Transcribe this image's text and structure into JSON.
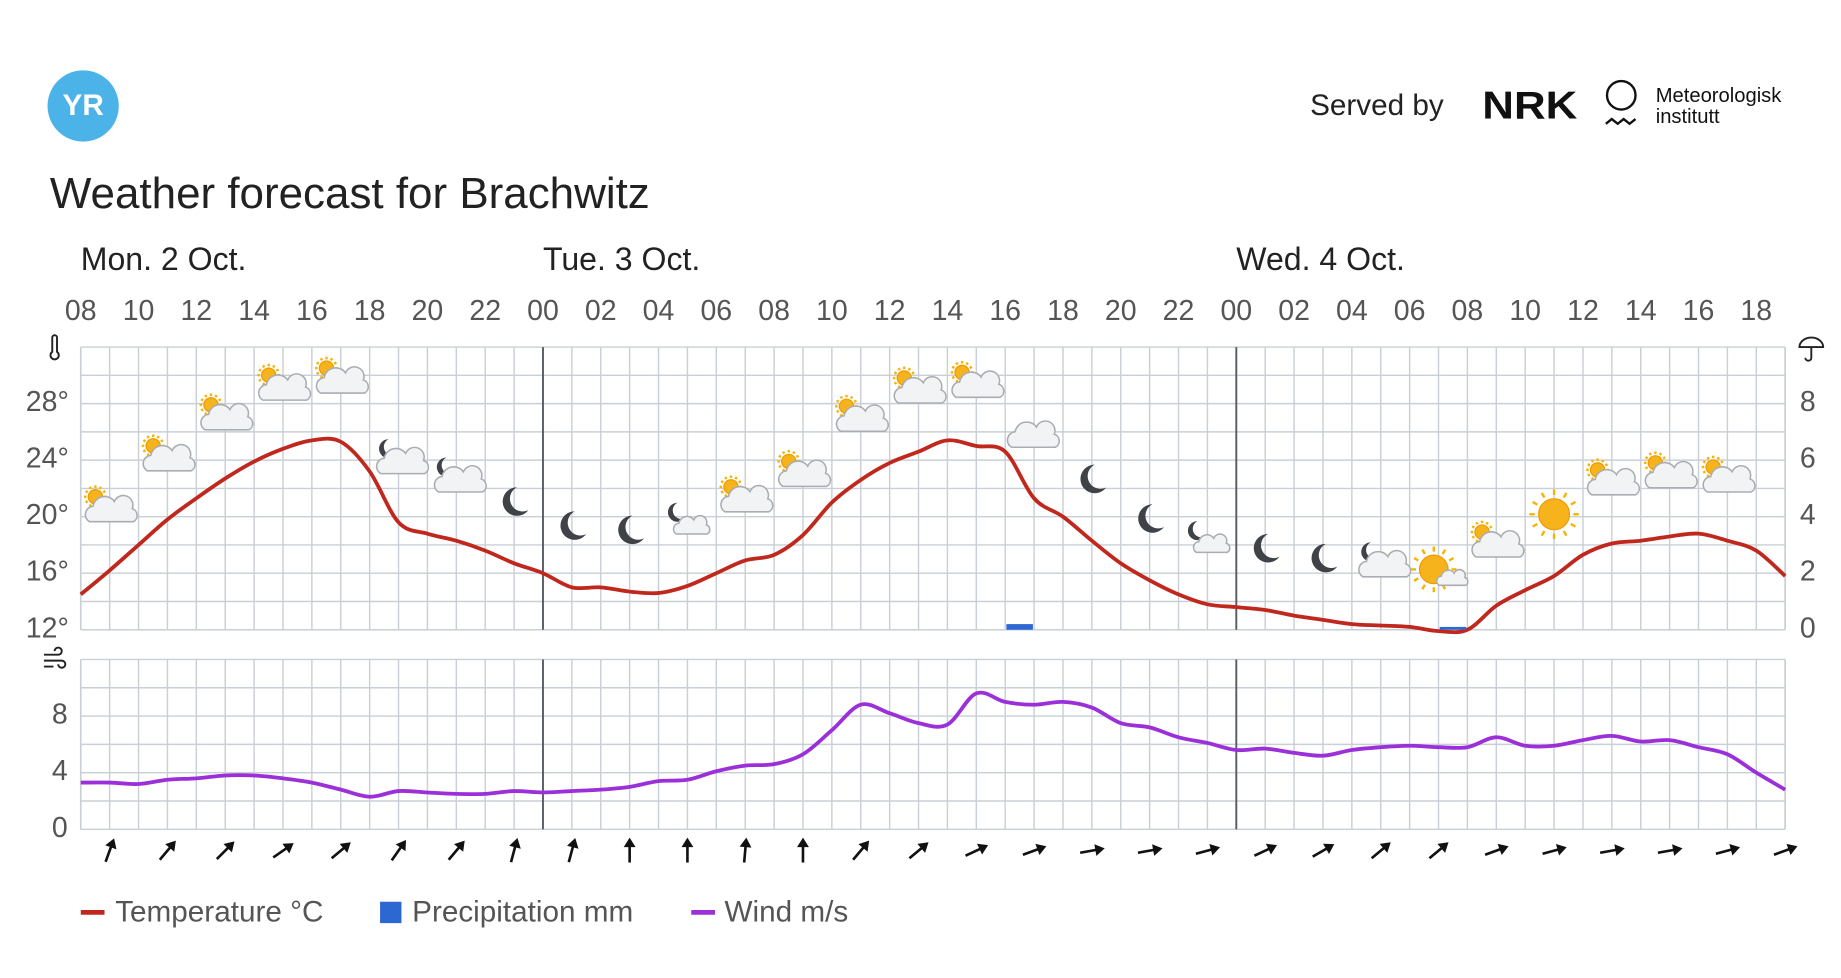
{
  "header": {
    "logo": "YR",
    "served_by": "Served by",
    "nrk": "NRK",
    "met": [
      "Meteorologisk",
      "institutt"
    ]
  },
  "chart_data": [
    {
      "type": "line",
      "title": "Weather forecast for Brachwitz",
      "days": [
        "Mon. 2 Oct.",
        "Tue. 3 Oct.",
        "Wed. 4 Oct."
      ],
      "categories": [
        "08",
        null,
        "10",
        null,
        "12",
        null,
        "14",
        null,
        "16",
        null,
        "18",
        null,
        "20",
        null,
        "22",
        null,
        "00",
        null,
        "02",
        null,
        "04",
        null,
        "06",
        null,
        "08",
        null,
        "10",
        null,
        "12",
        null,
        "14",
        null,
        "16",
        null,
        "18",
        null,
        "20",
        null,
        "22",
        null,
        "00",
        null,
        "02",
        null,
        "04",
        null,
        "06",
        null,
        "08",
        null,
        "10",
        null,
        "12",
        null,
        "14",
        null,
        "16",
        null,
        "18",
        null
      ],
      "ylim": [
        12,
        32
      ],
      "yticks": [
        {
          "value": 12,
          "label": "12°"
        },
        {
          "value": 16,
          "label": "16°"
        },
        {
          "value": 20,
          "label": "20°"
        },
        {
          "value": 24,
          "label": "24°"
        },
        {
          "value": 28,
          "label": "28°"
        }
      ],
      "ygrid": [
        12,
        14,
        16,
        18,
        20,
        22,
        24,
        26,
        28,
        30,
        32
      ],
      "y2lim": [
        0,
        10
      ],
      "y2ticks": [
        0,
        2,
        4,
        6,
        8
      ],
      "grid": true,
      "series": [
        {
          "name": "Temperature °C",
          "color": "#c0281e",
          "values": [
            14.5,
            16.2,
            18.0,
            19.8,
            21.3,
            22.7,
            23.9,
            24.8,
            25.4,
            25.3,
            23.2,
            19.6,
            18.8,
            18.3,
            17.6,
            16.7,
            16.0,
            15.0,
            15.0,
            14.7,
            14.6,
            15.1,
            16.0,
            16.9,
            17.3,
            18.7,
            21.0,
            22.6,
            23.8,
            24.6,
            25.4,
            25.0,
            24.6,
            21.3,
            20.0,
            18.3,
            16.7,
            15.5,
            14.5,
            13.8,
            13.6,
            13.4,
            13.0,
            12.7,
            12.4,
            12.3,
            12.2,
            11.9,
            12.0,
            13.7,
            14.8,
            15.8,
            17.3,
            18.1,
            18.3,
            18.6,
            18.8,
            18.3,
            17.6,
            15.8
          ]
        },
        {
          "name": "Precipitation mm",
          "color": "#2c67d2",
          "axis": "y2",
          "type": "bar",
          "values": [
            0,
            0,
            0,
            0,
            0,
            0,
            0,
            0,
            0,
            0,
            0,
            0,
            0,
            0,
            0,
            0,
            0,
            0,
            0,
            0,
            0,
            0,
            0,
            0,
            0,
            0,
            0,
            0,
            0,
            0,
            0,
            0,
            0.2,
            0,
            0,
            0,
            0,
            0,
            0,
            0,
            0,
            0,
            0,
            0,
            0,
            0,
            0,
            0.1,
            0,
            0,
            0,
            0,
            0,
            0,
            0,
            0,
            0,
            0,
            0,
            0
          ]
        }
      ]
    },
    {
      "type": "line",
      "ylim": [
        0,
        12
      ],
      "yticks": [
        0,
        4,
        8
      ],
      "ygrid": [
        0,
        2,
        4,
        6,
        8,
        10,
        12
      ],
      "grid": true,
      "series": [
        {
          "name": "Wind m/s",
          "color": "#9b30d9",
          "values": [
            3.3,
            3.3,
            3.2,
            3.5,
            3.6,
            3.8,
            3.8,
            3.6,
            3.3,
            2.8,
            2.3,
            2.7,
            2.6,
            2.5,
            2.5,
            2.7,
            2.6,
            2.7,
            2.8,
            3.0,
            3.4,
            3.5,
            4.1,
            4.5,
            4.6,
            5.3,
            7.0,
            8.8,
            8.2,
            7.5,
            7.4,
            9.6,
            9.0,
            8.8,
            9.0,
            8.6,
            7.5,
            7.2,
            6.5,
            6.1,
            5.6,
            5.7,
            5.4,
            5.2,
            5.6,
            5.8,
            5.9,
            5.8,
            5.8,
            6.5,
            5.9,
            5.9,
            6.3,
            6.6,
            6.2,
            6.3,
            5.8,
            5.3,
            4.0,
            2.8
          ]
        }
      ],
      "wind_direction": [
        20,
        40,
        45,
        55,
        50,
        35,
        40,
        15,
        15,
        0,
        0,
        5,
        0,
        40,
        50,
        65,
        70,
        80,
        80,
        75,
        65,
        60,
        50,
        50,
        70,
        75,
        80,
        80,
        75,
        70
      ]
    }
  ]
}
